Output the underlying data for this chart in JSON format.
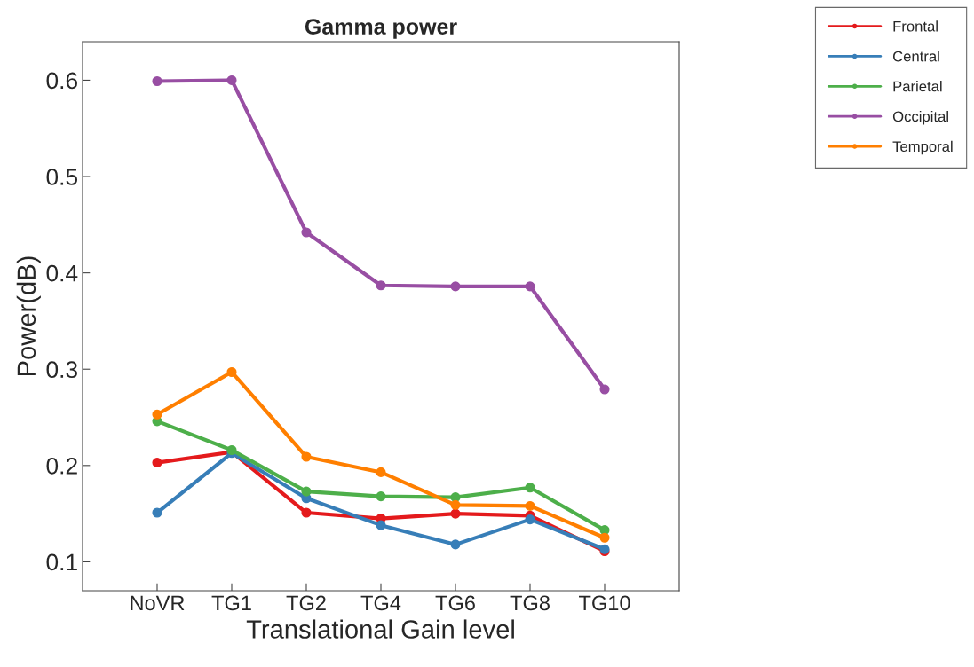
{
  "chart_data": {
    "type": "line",
    "title": "Gamma power",
    "xlabel": "Translational Gain level",
    "ylabel": "Power(dB)",
    "categories": [
      "NoVR",
      "TG1",
      "TG2",
      "TG4",
      "TG6",
      "TG8",
      "TG10"
    ],
    "series": [
      {
        "name": "Frontal",
        "color": "#e41a1c",
        "values": [
          0.203,
          0.214,
          0.151,
          0.145,
          0.15,
          0.148,
          0.111
        ]
      },
      {
        "name": "Central",
        "color": "#377eb8",
        "values": [
          0.151,
          0.213,
          0.166,
          0.138,
          0.118,
          0.144,
          0.113
        ]
      },
      {
        "name": "Parietal",
        "color": "#4daf4a",
        "values": [
          0.246,
          0.216,
          0.173,
          0.168,
          0.167,
          0.177,
          0.133
        ]
      },
      {
        "name": "Occipital",
        "color": "#984ea3",
        "values": [
          0.599,
          0.6,
          0.442,
          0.387,
          0.386,
          0.386,
          0.279
        ]
      },
      {
        "name": "Temporal",
        "color": "#ff7f00",
        "values": [
          0.253,
          0.297,
          0.209,
          0.193,
          0.159,
          0.158,
          0.125
        ]
      }
    ],
    "ylim": [
      0.07,
      0.64
    ],
    "yticks": [
      0.1,
      0.2,
      0.3,
      0.4,
      0.5,
      0.6
    ],
    "grid": false,
    "legend": "top right",
    "marker": "circle",
    "line_style": "solid"
  }
}
